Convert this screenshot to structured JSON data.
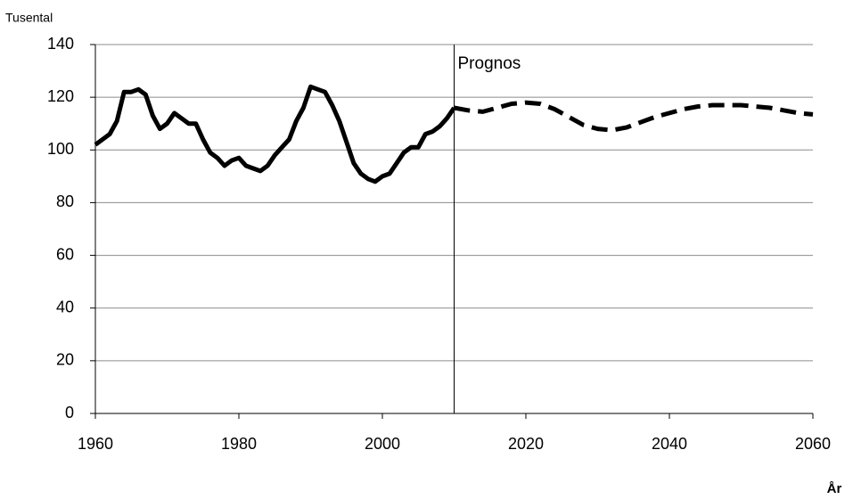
{
  "chart_data": {
    "type": "line",
    "y_label": "Tusental",
    "x_label": "År",
    "xlim": [
      1960,
      2060
    ],
    "xticks": [
      1960,
      1980,
      2000,
      2020,
      2040,
      2060
    ],
    "ylim": [
      0,
      140
    ],
    "yticks": [
      0,
      20,
      40,
      60,
      80,
      100,
      120,
      140
    ],
    "grid": true,
    "annotations": [
      {
        "text": "Prognos",
        "x": 2010
      }
    ],
    "series": [
      {
        "color": "#000000",
        "linestyle": "solid",
        "x": [
          1960,
          1961,
          1962,
          1963,
          1964,
          1965,
          1966,
          1967,
          1968,
          1969,
          1970,
          1971,
          1972,
          1973,
          1974,
          1975,
          1976,
          1977,
          1978,
          1979,
          1980,
          1981,
          1982,
          1983,
          1984,
          1985,
          1986,
          1987,
          1988,
          1989,
          1990,
          1991,
          1992,
          1993,
          1994,
          1995,
          1996,
          1997,
          1998,
          1999,
          2000,
          2001,
          2002,
          2003,
          2004,
          2005,
          2006,
          2007,
          2008,
          2009,
          2010
        ],
        "values": [
          102,
          104,
          106,
          111,
          122,
          122,
          123,
          121,
          113,
          108,
          110,
          114,
          112,
          110,
          110,
          104,
          99,
          97,
          94,
          96,
          97,
          94,
          93,
          92,
          94,
          98,
          101,
          104,
          111,
          116,
          124,
          123,
          122,
          117,
          111,
          103,
          95,
          91,
          89,
          88,
          90,
          91,
          95,
          99,
          101,
          101,
          106,
          107,
          109,
          112,
          116
        ]
      },
      {
        "color": "#000000",
        "linestyle": "dashed",
        "x": [
          2010,
          2012,
          2014,
          2016,
          2018,
          2020,
          2022,
          2024,
          2026,
          2028,
          2030,
          2032,
          2034,
          2036,
          2038,
          2040,
          2042,
          2044,
          2046,
          2048,
          2050,
          2052,
          2054,
          2056,
          2058,
          2060
        ],
        "values": [
          116,
          115,
          114.5,
          116,
          117.5,
          118,
          117.5,
          115.5,
          112.5,
          109.5,
          108,
          107.5,
          108.5,
          110.5,
          112.5,
          114,
          115.5,
          116.5,
          117,
          117,
          117,
          116.5,
          116,
          115,
          114,
          113.5
        ]
      }
    ]
  }
}
